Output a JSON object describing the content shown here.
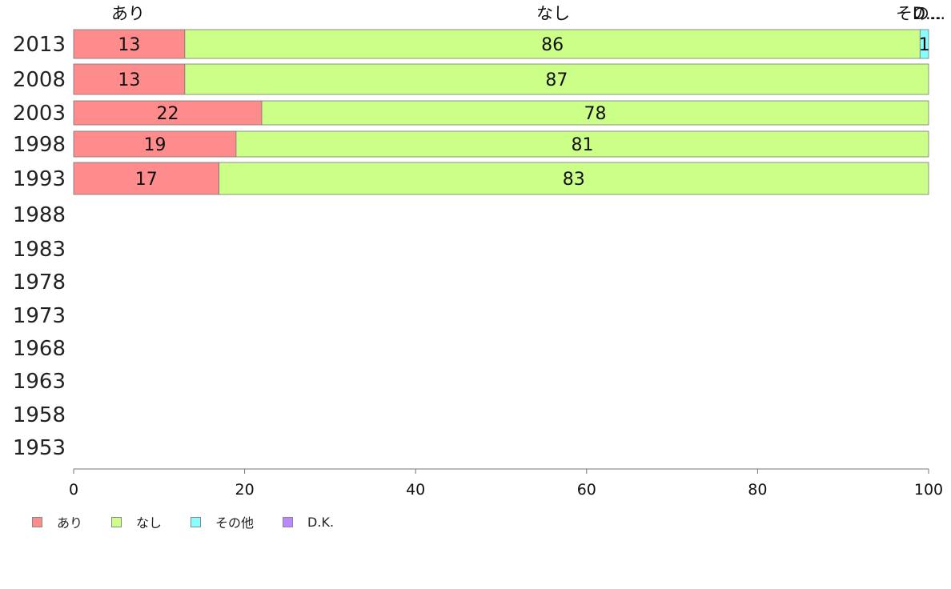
{
  "chart_data": {
    "type": "bar",
    "orientation": "horizontal",
    "stacked": true,
    "categories": [
      "2013",
      "2008",
      "2003",
      "1998",
      "1993",
      "1988",
      "1983",
      "1978",
      "1973",
      "1968",
      "1963",
      "1958",
      "1953"
    ],
    "series": [
      {
        "name": "あり",
        "color": "#ff8c8c",
        "values": [
          13,
          13,
          22,
          19,
          17,
          null,
          null,
          null,
          null,
          null,
          null,
          null,
          null
        ]
      },
      {
        "name": "なし",
        "color": "#ccff88",
        "values": [
          86,
          87,
          78,
          81,
          83,
          null,
          null,
          null,
          null,
          null,
          null,
          null,
          null
        ]
      },
      {
        "name": "その他",
        "color": "#88ffff",
        "values": [
          1,
          0,
          0,
          0,
          0,
          null,
          null,
          null,
          null,
          null,
          null,
          null,
          null
        ]
      },
      {
        "name": "D.K.",
        "color": "#bb88ff",
        "values": [
          0,
          0,
          0,
          0,
          0,
          null,
          null,
          null,
          null,
          null,
          null,
          null,
          null
        ]
      }
    ],
    "column_headers": [
      "あり",
      "なし",
      "その...",
      "D..."
    ],
    "xlim": [
      0,
      100
    ],
    "xticks": [
      "0",
      "20",
      "40",
      "60",
      "80",
      "100"
    ],
    "legend_position": "bottom-left"
  }
}
